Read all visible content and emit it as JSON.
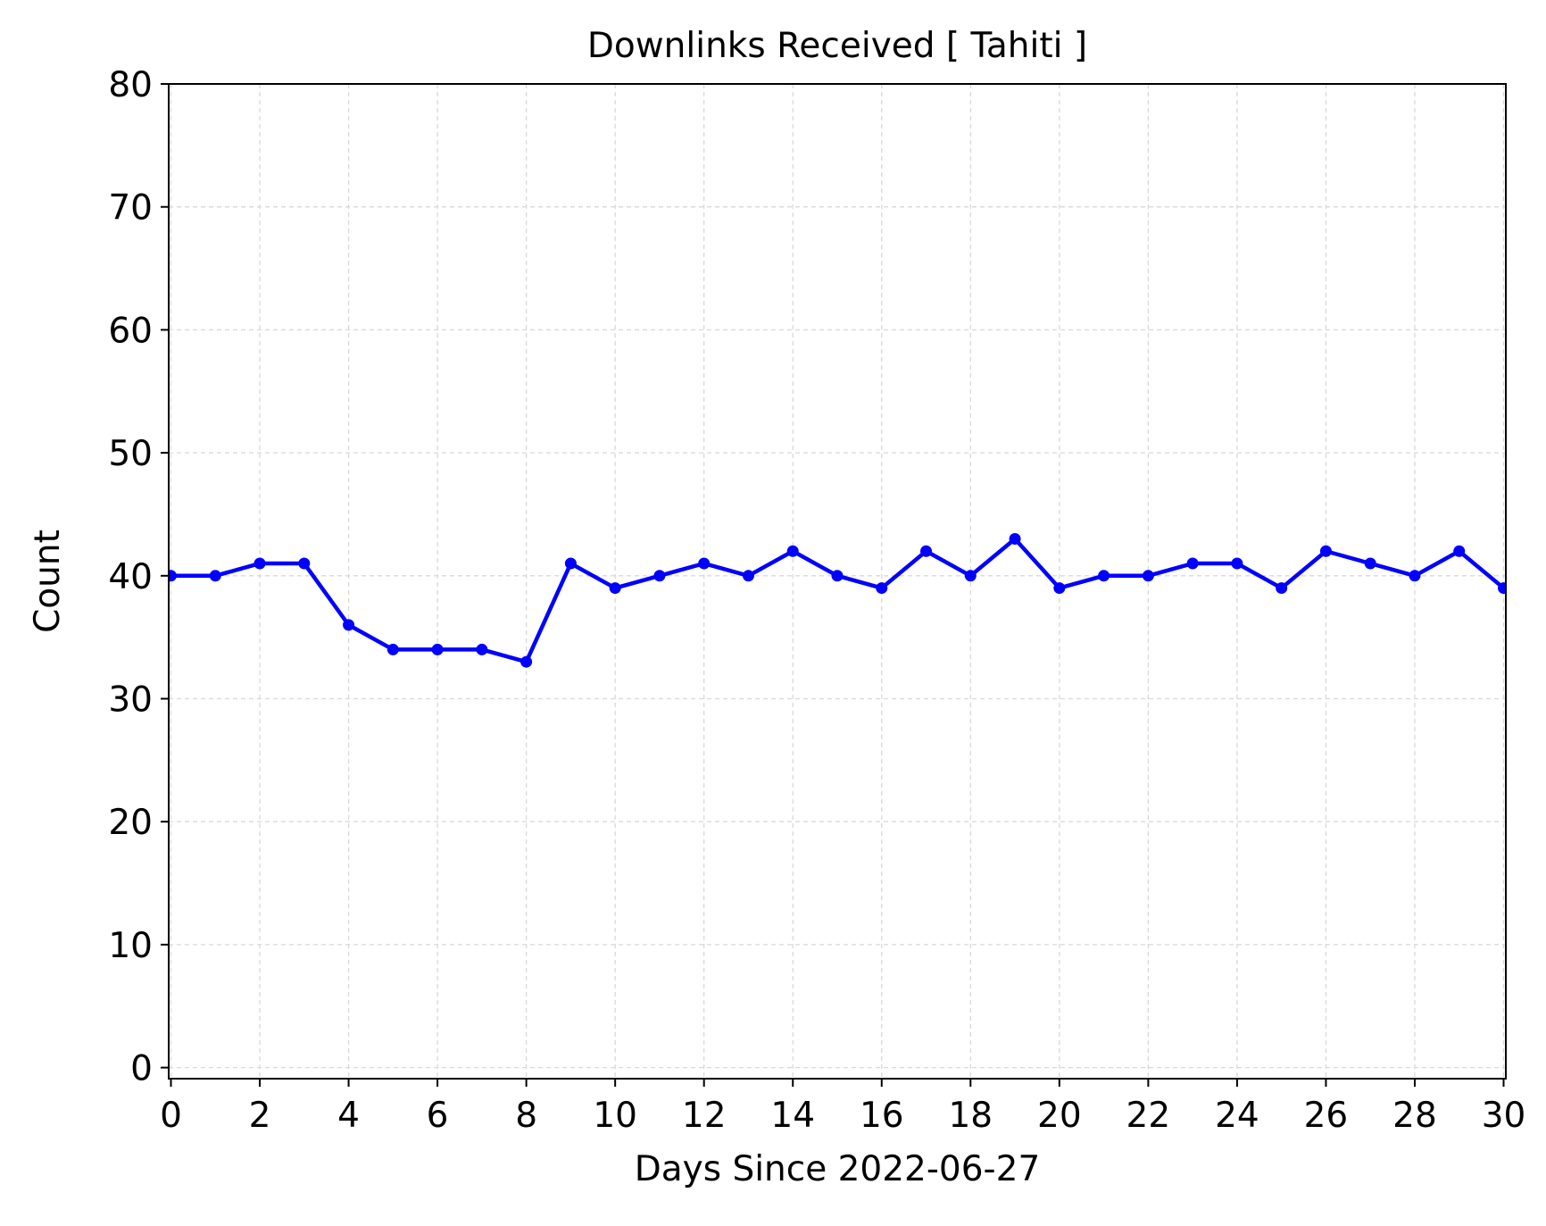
{
  "chart_data": {
    "type": "line",
    "title": "Downlinks Received [ Tahiti ]",
    "xlabel": "Days Since 2022-06-27",
    "ylabel": "Count",
    "xlim": [
      -0.05,
      30.05
    ],
    "ylim": [
      -0.9,
      80
    ],
    "xticks": [
      0,
      2,
      4,
      6,
      8,
      10,
      12,
      14,
      16,
      18,
      20,
      22,
      24,
      26,
      28,
      30
    ],
    "yticks": [
      0,
      10,
      20,
      30,
      40,
      50,
      60,
      70,
      80
    ],
    "grid": true,
    "series": [
      {
        "color": "#0000ff",
        "marker": "circle",
        "x": [
          0,
          1,
          2,
          3,
          4,
          5,
          6,
          7,
          8,
          9,
          10,
          11,
          12,
          13,
          14,
          15,
          16,
          17,
          18,
          19,
          20,
          21,
          22,
          23,
          24,
          25,
          26,
          27,
          28,
          29,
          30
        ],
        "y": [
          40,
          40,
          41,
          41,
          36,
          34,
          34,
          34,
          33,
          41,
          39,
          40,
          41,
          40,
          42,
          40,
          39,
          42,
          40,
          43,
          39,
          40,
          40,
          41,
          41,
          39,
          42,
          41,
          40,
          42,
          39
        ]
      }
    ]
  }
}
